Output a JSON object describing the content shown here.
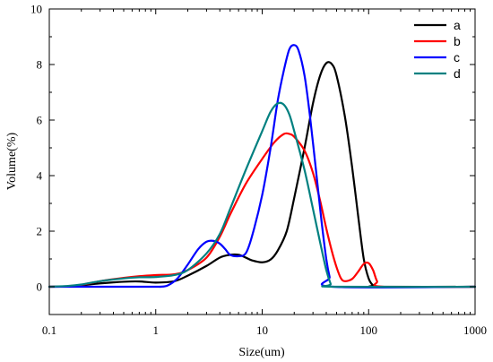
{
  "chart_data": {
    "type": "line",
    "xlabel": "Size(um)",
    "ylabel": "Volume(%)",
    "xscale": "log",
    "xlim": [
      0.1,
      1000
    ],
    "ylim": [
      -1,
      10
    ],
    "xticks": [
      0.1,
      1,
      10,
      100,
      1000
    ],
    "xtick_labels": [
      "0.1",
      "1",
      "10",
      "100",
      "1000"
    ],
    "yticks": [
      0,
      2,
      4,
      6,
      8,
      10
    ],
    "ytick_labels": [
      "0",
      "2",
      "4",
      "6",
      "8",
      "10"
    ],
    "grid": false,
    "legend_position": "top-right",
    "series": [
      {
        "name": "a",
        "color": "#000000",
        "points": [
          [
            0.1,
            0
          ],
          [
            0.15,
            0.01
          ],
          [
            0.2,
            0.05
          ],
          [
            0.3,
            0.12
          ],
          [
            0.5,
            0.18
          ],
          [
            0.7,
            0.19
          ],
          [
            1.0,
            0.15
          ],
          [
            1.5,
            0.2
          ],
          [
            2.0,
            0.4
          ],
          [
            3.0,
            0.75
          ],
          [
            4.0,
            1.05
          ],
          [
            5.0,
            1.15
          ],
          [
            6.0,
            1.15
          ],
          [
            7.0,
            1.05
          ],
          [
            8.0,
            0.95
          ],
          [
            10.0,
            0.88
          ],
          [
            12.0,
            0.98
          ],
          [
            14.0,
            1.3
          ],
          [
            17.0,
            2.0
          ],
          [
            20.0,
            3.2
          ],
          [
            25.0,
            5.0
          ],
          [
            30.0,
            6.6
          ],
          [
            35.0,
            7.6
          ],
          [
            40.0,
            8.05
          ],
          [
            45.0,
            8.02
          ],
          [
            50.0,
            7.6
          ],
          [
            60.0,
            6.1
          ],
          [
            70.0,
            4.3
          ],
          [
            80.0,
            2.5
          ],
          [
            90.0,
            1.0
          ],
          [
            100.0,
            0.3
          ],
          [
            110.0,
            0.05
          ],
          [
            120.0,
            0
          ],
          [
            1000,
            0
          ]
        ]
      },
      {
        "name": "b",
        "color": "#ff0000",
        "points": [
          [
            0.1,
            0
          ],
          [
            0.15,
            0.02
          ],
          [
            0.2,
            0.07
          ],
          [
            0.3,
            0.2
          ],
          [
            0.5,
            0.32
          ],
          [
            0.7,
            0.38
          ],
          [
            1.0,
            0.42
          ],
          [
            1.5,
            0.45
          ],
          [
            2.0,
            0.6
          ],
          [
            3.0,
            1.05
          ],
          [
            4.0,
            1.8
          ],
          [
            5.0,
            2.6
          ],
          [
            7.0,
            3.7
          ],
          [
            10.0,
            4.6
          ],
          [
            13.0,
            5.2
          ],
          [
            16.0,
            5.5
          ],
          [
            18.0,
            5.5
          ],
          [
            20.0,
            5.4
          ],
          [
            25.0,
            4.9
          ],
          [
            30.0,
            4.1
          ],
          [
            35.0,
            3.1
          ],
          [
            40.0,
            2.1
          ],
          [
            45.0,
            1.3
          ],
          [
            50.0,
            0.7
          ],
          [
            55.0,
            0.3
          ],
          [
            60.0,
            0.2
          ],
          [
            70.0,
            0.28
          ],
          [
            80.0,
            0.55
          ],
          [
            90.0,
            0.82
          ],
          [
            100.0,
            0.85
          ],
          [
            110.0,
            0.6
          ],
          [
            120.0,
            0.2
          ],
          [
            135.0,
            0
          ],
          [
            1000,
            0
          ]
        ]
      },
      {
        "name": "c",
        "color": "#0000ff",
        "points": [
          [
            0.1,
            0
          ],
          [
            0.9,
            0
          ],
          [
            1.1,
            0
          ],
          [
            1.3,
            0.05
          ],
          [
            1.6,
            0.3
          ],
          [
            2.0,
            0.8
          ],
          [
            2.5,
            1.35
          ],
          [
            3.0,
            1.62
          ],
          [
            3.5,
            1.65
          ],
          [
            4.0,
            1.55
          ],
          [
            4.5,
            1.35
          ],
          [
            5.0,
            1.15
          ],
          [
            6.0,
            1.1
          ],
          [
            7.0,
            1.2
          ],
          [
            8.0,
            1.8
          ],
          [
            10.0,
            3.3
          ],
          [
            12.0,
            5.0
          ],
          [
            14.0,
            6.7
          ],
          [
            16.0,
            7.8
          ],
          [
            18.0,
            8.55
          ],
          [
            20.0,
            8.7
          ],
          [
            22.0,
            8.5
          ],
          [
            25.0,
            7.6
          ],
          [
            28.0,
            6.2
          ],
          [
            32.0,
            4.2
          ],
          [
            36.0,
            2.4
          ],
          [
            40.0,
            1.0
          ],
          [
            43.0,
            0.35
          ],
          [
            46.0,
            0
          ],
          [
            1000,
            0
          ]
        ]
      },
      {
        "name": "d",
        "color": "#008080",
        "points": [
          [
            0.1,
            0
          ],
          [
            0.15,
            0.03
          ],
          [
            0.2,
            0.08
          ],
          [
            0.3,
            0.2
          ],
          [
            0.5,
            0.3
          ],
          [
            0.7,
            0.34
          ],
          [
            1.0,
            0.35
          ],
          [
            1.5,
            0.42
          ],
          [
            2.0,
            0.6
          ],
          [
            3.0,
            1.2
          ],
          [
            4.0,
            1.9
          ],
          [
            5.0,
            2.8
          ],
          [
            7.0,
            4.2
          ],
          [
            10.0,
            5.6
          ],
          [
            12.0,
            6.3
          ],
          [
            14.0,
            6.6
          ],
          [
            16.0,
            6.55
          ],
          [
            18.0,
            6.2
          ],
          [
            20.0,
            5.6
          ],
          [
            25.0,
            4.2
          ],
          [
            30.0,
            2.8
          ],
          [
            35.0,
            1.6
          ],
          [
            40.0,
            0.6
          ],
          [
            44.0,
            0.1
          ],
          [
            46.0,
            0
          ],
          [
            1000,
            0
          ]
        ]
      }
    ]
  }
}
